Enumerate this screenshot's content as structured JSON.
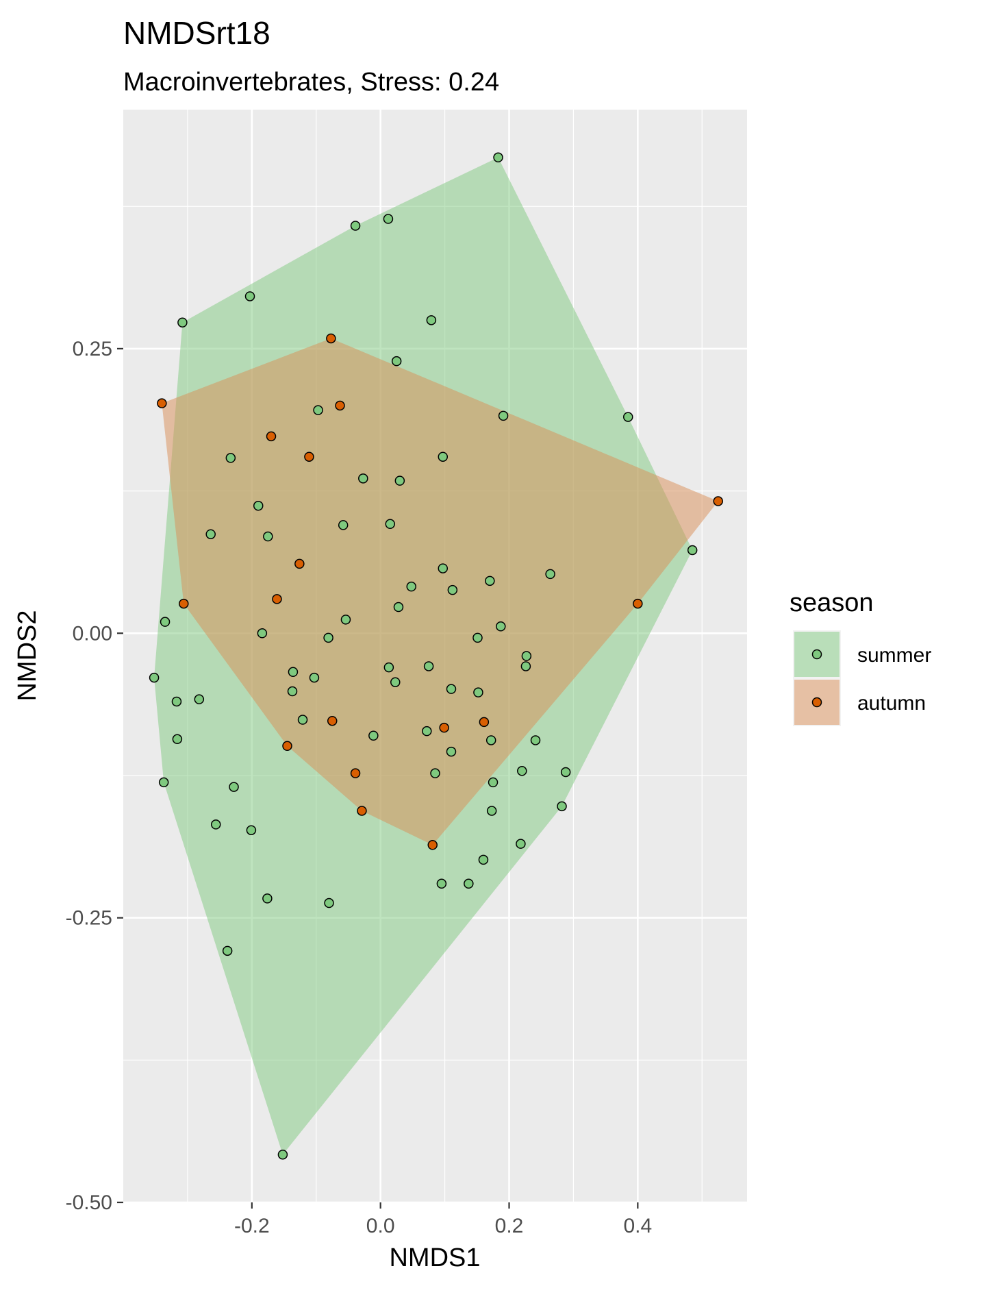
{
  "chart_data": {
    "type": "scatter",
    "title": "NMDSrt18",
    "subtitle": "Macroinvertebrates, Stress: 0.24",
    "xlabel": "NMDS1",
    "ylabel": "NMDS2",
    "xlim": [
      -0.4,
      0.57
    ],
    "ylim": [
      -0.5,
      0.46
    ],
    "x_ticks": [
      -0.2,
      0.0,
      0.2,
      0.4
    ],
    "x_tick_labels": [
      "-0.2",
      "0.0",
      "0.2",
      "0.4"
    ],
    "y_ticks": [
      -0.5,
      -0.25,
      0.0,
      0.25
    ],
    "y_tick_labels": [
      "-0.50",
      "-0.25",
      "0.00",
      "0.25"
    ],
    "grid": true,
    "legend": {
      "title": "season",
      "position": "right"
    },
    "series": [
      {
        "name": "summer",
        "fill": "#7fc97f",
        "hull_fill": "#7fc97f",
        "points": [
          [
            0.183,
            0.418
          ],
          [
            0.012,
            0.364
          ],
          [
            -0.039,
            0.358
          ],
          [
            -0.203,
            0.296
          ],
          [
            -0.308,
            0.273
          ],
          [
            0.079,
            0.275
          ],
          [
            0.025,
            0.239
          ],
          [
            0.191,
            0.191
          ],
          [
            0.385,
            0.19
          ],
          [
            -0.097,
            0.196
          ],
          [
            0.097,
            0.155
          ],
          [
            -0.233,
            0.154
          ],
          [
            -0.027,
            0.136
          ],
          [
            0.03,
            0.134
          ],
          [
            -0.19,
            0.112
          ],
          [
            -0.058,
            0.095
          ],
          [
            0.015,
            0.096
          ],
          [
            -0.264,
            0.087
          ],
          [
            -0.175,
            0.085
          ],
          [
            0.485,
            0.073
          ],
          [
            0.097,
            0.057
          ],
          [
            0.264,
            0.052
          ],
          [
            0.17,
            0.046
          ],
          [
            0.048,
            0.041
          ],
          [
            0.112,
            0.038
          ],
          [
            0.028,
            0.023
          ],
          [
            -0.054,
            0.012
          ],
          [
            -0.335,
            0.01
          ],
          [
            0.187,
            0.006
          ],
          [
            -0.184,
            0.0
          ],
          [
            -0.081,
            -0.004
          ],
          [
            0.151,
            -0.004
          ],
          [
            0.227,
            -0.02
          ],
          [
            0.013,
            -0.03
          ],
          [
            0.075,
            -0.029
          ],
          [
            0.226,
            -0.029
          ],
          [
            -0.136,
            -0.034
          ],
          [
            -0.103,
            -0.039
          ],
          [
            -0.352,
            -0.039
          ],
          [
            0.023,
            -0.043
          ],
          [
            -0.137,
            -0.051
          ],
          [
            0.11,
            -0.049
          ],
          [
            0.152,
            -0.052
          ],
          [
            -0.282,
            -0.058
          ],
          [
            -0.317,
            -0.06
          ],
          [
            -0.121,
            -0.076
          ],
          [
            0.072,
            -0.086
          ],
          [
            -0.011,
            -0.09
          ],
          [
            0.172,
            -0.094
          ],
          [
            0.241,
            -0.094
          ],
          [
            -0.316,
            -0.093
          ],
          [
            0.11,
            -0.104
          ],
          [
            0.085,
            -0.123
          ],
          [
            0.22,
            -0.121
          ],
          [
            0.288,
            -0.122
          ],
          [
            0.175,
            -0.131
          ],
          [
            -0.337,
            -0.131
          ],
          [
            -0.228,
            -0.135
          ],
          [
            0.282,
            -0.152
          ],
          [
            0.173,
            -0.156
          ],
          [
            -0.256,
            -0.168
          ],
          [
            -0.201,
            -0.173
          ],
          [
            0.218,
            -0.185
          ],
          [
            0.16,
            -0.199
          ],
          [
            0.095,
            -0.22
          ],
          [
            0.137,
            -0.22
          ],
          [
            -0.176,
            -0.233
          ],
          [
            -0.08,
            -0.237
          ],
          [
            -0.238,
            -0.279
          ],
          [
            -0.152,
            -0.458
          ]
        ]
      },
      {
        "name": "autumn",
        "fill": "#d95f02",
        "hull_fill": "#d98e55",
        "points": [
          [
            -0.077,
            0.259
          ],
          [
            -0.34,
            0.202
          ],
          [
            -0.063,
            0.2
          ],
          [
            -0.17,
            0.173
          ],
          [
            -0.111,
            0.155
          ],
          [
            0.525,
            0.116
          ],
          [
            -0.126,
            0.061
          ],
          [
            -0.161,
            0.03
          ],
          [
            -0.306,
            0.026
          ],
          [
            0.4,
            0.026
          ],
          [
            -0.075,
            -0.077
          ],
          [
            0.161,
            -0.078
          ],
          [
            0.099,
            -0.083
          ],
          [
            -0.145,
            -0.099
          ],
          [
            -0.039,
            -0.123
          ],
          [
            -0.029,
            -0.156
          ],
          [
            0.081,
            -0.186
          ]
        ]
      }
    ]
  }
}
